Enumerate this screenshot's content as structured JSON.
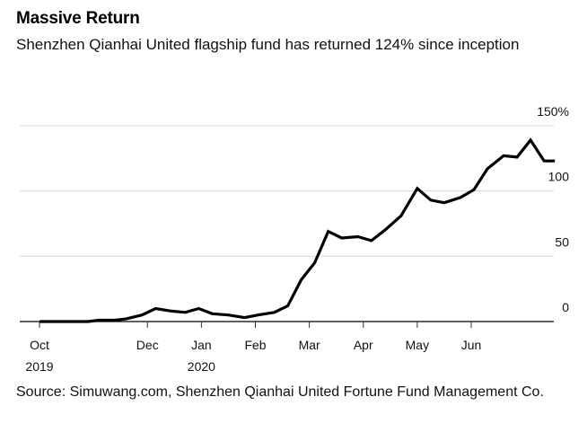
{
  "chart_data": {
    "type": "line",
    "title": "Massive Return",
    "subtitle": "Shenzhen Qianhai United flagship fund has returned 124% since inception",
    "source": "Source: Simuwang.com, Shenzhen Qianhai United Fortune Fund Management Co.",
    "xlabel": "",
    "ylabel": "",
    "ylim": [
      0,
      150
    ],
    "xlim_months": [
      -0.35,
      9.2
    ],
    "grid": true,
    "yticks": [
      {
        "value": 150,
        "label": "150%"
      },
      {
        "value": 100,
        "label": "100"
      },
      {
        "value": 50,
        "label": "50"
      },
      {
        "value": 0,
        "label": "0"
      }
    ],
    "xticks": [
      {
        "month": 0,
        "label": "Oct",
        "year": "2019"
      },
      {
        "month": 2,
        "label": "Dec",
        "year": ""
      },
      {
        "month": 3,
        "label": "Jan",
        "year": "2020"
      },
      {
        "month": 4,
        "label": "Feb",
        "year": ""
      },
      {
        "month": 5,
        "label": "Mar",
        "year": ""
      },
      {
        "month": 6,
        "label": "Apr",
        "year": ""
      },
      {
        "month": 7,
        "label": "May",
        "year": ""
      },
      {
        "month": 8,
        "label": "Jun",
        "year": ""
      }
    ],
    "series": [
      {
        "name": "Shenzhen Qianhai United flagship fund cumulative return (%)",
        "color": "#000000",
        "points": [
          [
            0.0,
            0
          ],
          [
            0.9,
            0
          ],
          [
            1.1,
            1
          ],
          [
            1.4,
            1
          ],
          [
            1.6,
            2
          ],
          [
            1.9,
            5
          ],
          [
            2.15,
            10
          ],
          [
            2.45,
            8
          ],
          [
            2.7,
            7
          ],
          [
            2.95,
            10
          ],
          [
            3.2,
            6
          ],
          [
            3.5,
            5
          ],
          [
            3.8,
            3
          ],
          [
            4.05,
            5
          ],
          [
            4.35,
            7
          ],
          [
            4.6,
            12
          ],
          [
            4.85,
            32
          ],
          [
            5.1,
            45
          ],
          [
            5.35,
            69
          ],
          [
            5.6,
            64
          ],
          [
            5.9,
            65
          ],
          [
            6.15,
            62
          ],
          [
            6.4,
            70
          ],
          [
            6.7,
            81
          ],
          [
            7.0,
            102
          ],
          [
            7.25,
            93
          ],
          [
            7.5,
            91
          ],
          [
            7.8,
            95
          ],
          [
            8.05,
            101
          ],
          [
            8.3,
            117
          ],
          [
            8.6,
            127
          ],
          [
            8.85,
            126
          ],
          [
            9.1,
            139
          ],
          [
            9.35,
            123
          ],
          [
            9.55,
            123
          ]
        ]
      }
    ]
  }
}
